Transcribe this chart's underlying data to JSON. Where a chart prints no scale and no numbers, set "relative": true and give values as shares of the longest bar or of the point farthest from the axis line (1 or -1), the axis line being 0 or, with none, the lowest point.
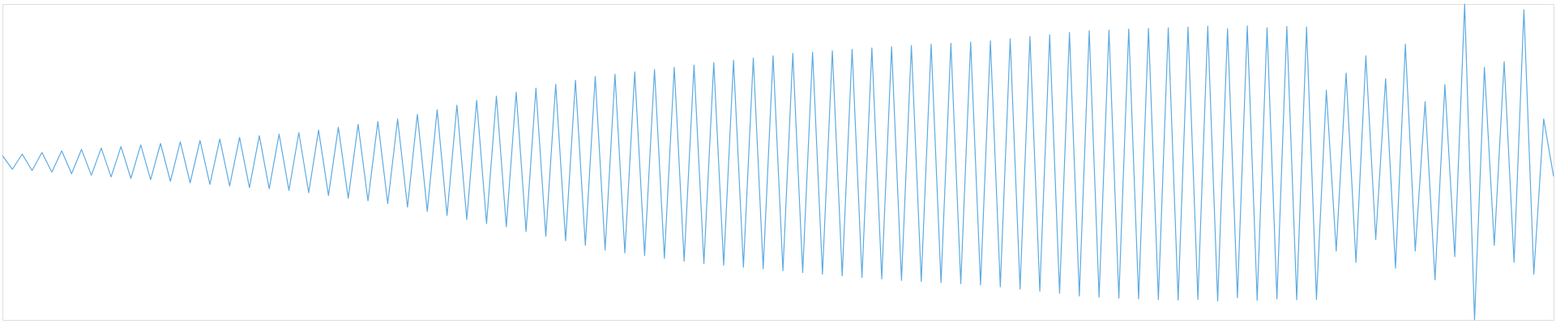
{
  "chart_data": {
    "type": "line",
    "relative": true,
    "line_style": "solid",
    "marker": "none",
    "categories": [
      null,
      null,
      null,
      null,
      null,
      null,
      null,
      null,
      null,
      null,
      null,
      null,
      null,
      null,
      null,
      null,
      null,
      null,
      null,
      null,
      null,
      null,
      null,
      null,
      null,
      null,
      null,
      null,
      null,
      null,
      null,
      null,
      null,
      null,
      null,
      null,
      null,
      null,
      null,
      null,
      null,
      null,
      null,
      null,
      null,
      null,
      null,
      null,
      null,
      null,
      null,
      null,
      null,
      null,
      null,
      null,
      null,
      null,
      null,
      null,
      null,
      null,
      null,
      null,
      null,
      null,
      null,
      null,
      null,
      null,
      null,
      null,
      null,
      null,
      null,
      null,
      null,
      null,
      null,
      null,
      null,
      null,
      null,
      null,
      null,
      null,
      null,
      null,
      null,
      null,
      null,
      null,
      null,
      null,
      null,
      null,
      null,
      null,
      null,
      null,
      null,
      null,
      null,
      null,
      null,
      null,
      null,
      null,
      null,
      null,
      null,
      null,
      null,
      null,
      null,
      null,
      null,
      null,
      null,
      null,
      null,
      null,
      null,
      null,
      null,
      null,
      null,
      null,
      null,
      null,
      null,
      null,
      null,
      null,
      null,
      null,
      null,
      null,
      null,
      null,
      null,
      null,
      null,
      null,
      null,
      null,
      null,
      null,
      null,
      null,
      null,
      null,
      null,
      null,
      null,
      null,
      null,
      null
    ],
    "series": [
      {
        "color": "#5dabe2",
        "values": [
          0.52,
          0.477,
          0.525,
          0.473,
          0.53,
          0.468,
          0.535,
          0.463,
          0.54,
          0.458,
          0.544,
          0.453,
          0.549,
          0.448,
          0.554,
          0.444,
          0.559,
          0.439,
          0.564,
          0.434,
          0.568,
          0.429,
          0.573,
          0.424,
          0.578,
          0.419,
          0.583,
          0.415,
          0.588,
          0.41,
          0.593,
          0.403,
          0.601,
          0.394,
          0.61,
          0.385,
          0.619,
          0.377,
          0.628,
          0.368,
          0.636,
          0.357,
          0.651,
          0.344,
          0.665,
          0.331,
          0.68,
          0.318,
          0.695,
          0.305,
          0.709,
          0.295,
          0.721,
          0.28,
          0.734,
          0.265,
          0.746,
          0.251,
          0.759,
          0.236,
          0.771,
          0.221,
          0.778,
          0.212,
          0.785,
          0.204,
          0.793,
          0.195,
          0.8,
          0.186,
          0.807,
          0.179,
          0.815,
          0.173,
          0.822,
          0.167,
          0.829,
          0.162,
          0.836,
          0.156,
          0.844,
          0.15,
          0.848,
          0.145,
          0.852,
          0.14,
          0.857,
          0.135,
          0.861,
          0.13,
          0.865,
          0.125,
          0.869,
          0.122,
          0.873,
          0.118,
          0.876,
          0.115,
          0.88,
          0.111,
          0.884,
          0.105,
          0.89,
          0.098,
          0.897,
          0.091,
          0.903,
          0.084,
          0.91,
          0.076,
          0.916,
          0.072,
          0.918,
          0.069,
          0.921,
          0.067,
          0.923,
          0.065,
          0.925,
          0.063,
          0.927,
          0.065,
          0.93,
          0.06,
          0.922,
          0.07,
          0.931,
          0.062,
          0.925,
          0.067,
          0.929,
          0.064,
          0.927,
          0.065,
          0.727,
          0.218,
          0.782,
          0.182,
          0.836,
          0.255,
          0.764,
          0.164,
          0.873,
          0.218,
          0.691,
          0.127,
          0.745,
          0.2,
          1.0,
          0,
          0.8,
          0.236,
          0.818,
          0.182,
          0.982,
          0.145,
          0.636,
          0.455
        ]
      }
    ]
  }
}
